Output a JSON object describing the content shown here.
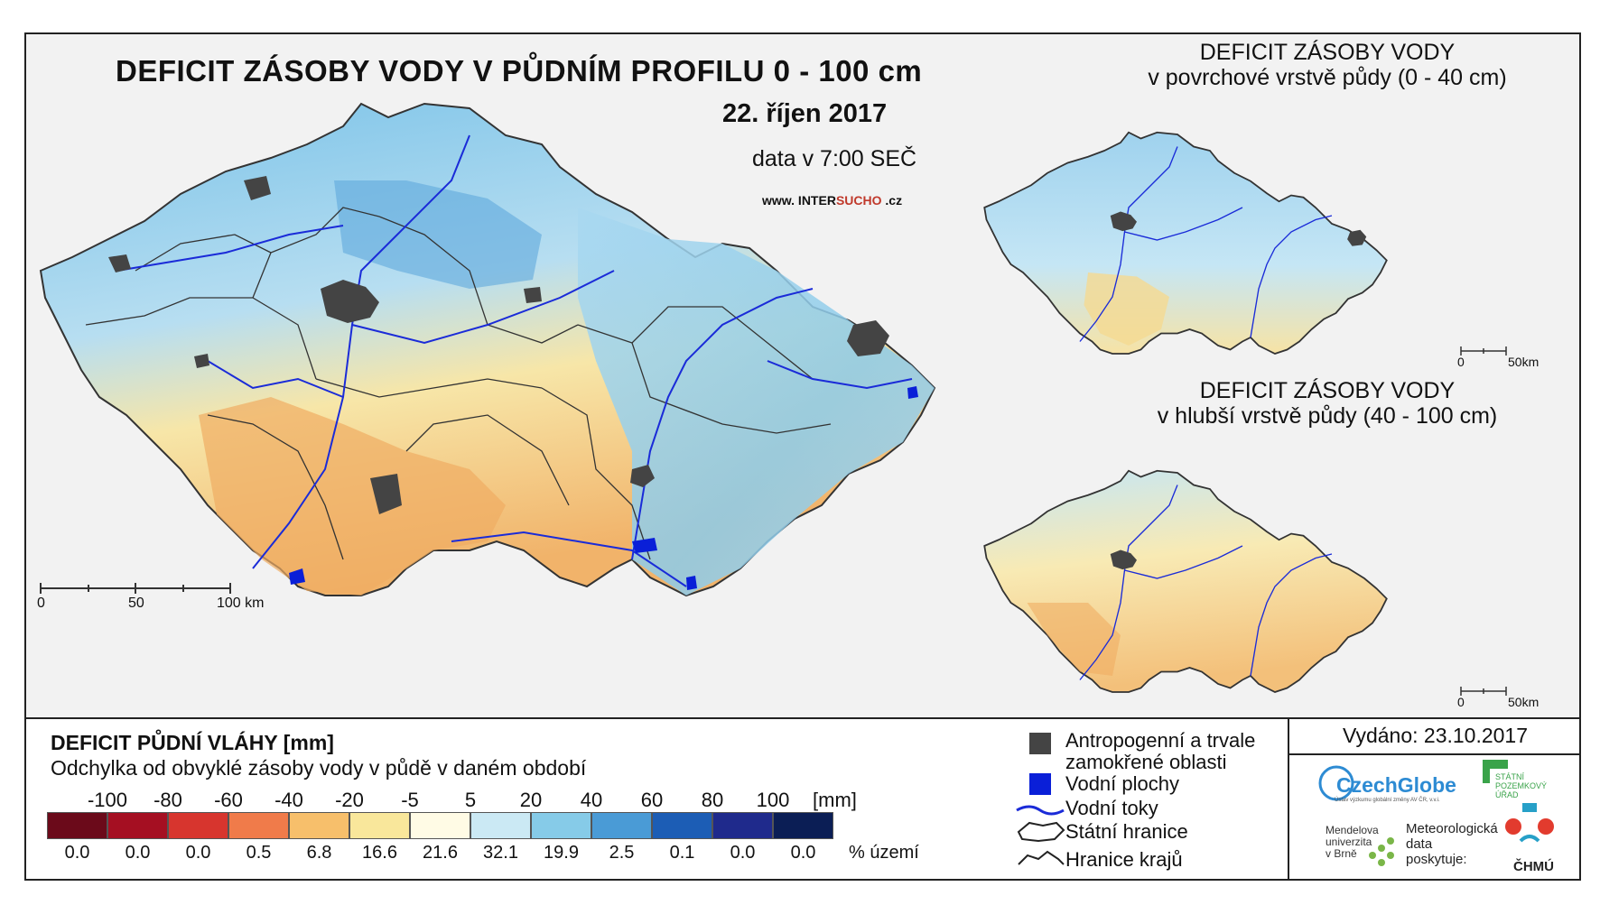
{
  "title": "DEFICIT ZÁSOBY VODY V PŮDNÍM PROFILU 0 - 100 cm",
  "date": "22. říjen 2017",
  "data_time": "data v 7:00 SEČ",
  "website": {
    "prefix": "www. INTER",
    "highlight": "SUCHO",
    "suffix": " .cz"
  },
  "main_scale": {
    "labels": [
      "0",
      "50",
      "100 km"
    ]
  },
  "inset_top": {
    "title_line1": "DEFICIT ZÁSOBY VODY",
    "title_line2": "v povrchové vrstvě půdy (0 - 40 cm)",
    "scale_labels": [
      "0",
      "50km"
    ]
  },
  "inset_bottom": {
    "title_line1": "DEFICIT ZÁSOBY VODY",
    "title_line2": "v hlubší vrstvě půdy (40 - 100 cm)",
    "scale_labels": [
      "0",
      "50km"
    ]
  },
  "legend": {
    "title": "DEFICIT PŮDNÍ VLÁHY [mm]",
    "subtitle": "Odchylka od obvyklé zásoby vody v půdě v daném období",
    "breaks": [
      "-100",
      "-80",
      "-60",
      "-40",
      "-20",
      "-5",
      "5",
      "20",
      "40",
      "60",
      "80",
      "100"
    ],
    "unit": "[mm]",
    "colors": [
      "#6b0a1a",
      "#a50f22",
      "#d7352e",
      "#f07b4a",
      "#f7bf6b",
      "#f9e79b",
      "#fffbe5",
      "#cbe9f4",
      "#86cbe8",
      "#4a9bd6",
      "#1c5db5",
      "#1f2a8c",
      "#0b1e55"
    ],
    "percentages": [
      "0.0",
      "0.0",
      "0.0",
      "0.5",
      "6.8",
      "16.6",
      "21.6",
      "32.1",
      "19.9",
      "2.5",
      "0.1",
      "0.0",
      "0.0"
    ],
    "pct_unit": "% území"
  },
  "symbols": [
    {
      "label1": "Antropogenní a trvale",
      "label2": "zamokřené oblasti",
      "icon": "urban-square"
    },
    {
      "label1": "Vodní plochy",
      "label2": "",
      "icon": "water-square"
    },
    {
      "label1": "Vodní toky",
      "label2": "",
      "icon": "river-line"
    },
    {
      "label1": "Státní hranice",
      "label2": "",
      "icon": "state-border"
    },
    {
      "label1": "Hranice krajů",
      "label2": "",
      "icon": "region-border"
    }
  ],
  "issued": "Vydáno: 23.10.2017",
  "logos": {
    "czechglobe": "CzechGlobe",
    "czechglobe_sub": "Ústav výzkumu globální změny AV ČR, v.v.i.",
    "spu_line1": "STÁTNÍ",
    "spu_line2": "POZEMKOVÝ",
    "spu_line3": "ÚŘAD",
    "mendel_line1": "Mendelova",
    "mendel_line2": "univerzita",
    "mendel_line3": "v Brně",
    "meteo_line1": "Meteorologická",
    "meteo_line2": "data",
    "meteo_line3": "poskytuje:",
    "chmu": "ČHMÚ"
  }
}
